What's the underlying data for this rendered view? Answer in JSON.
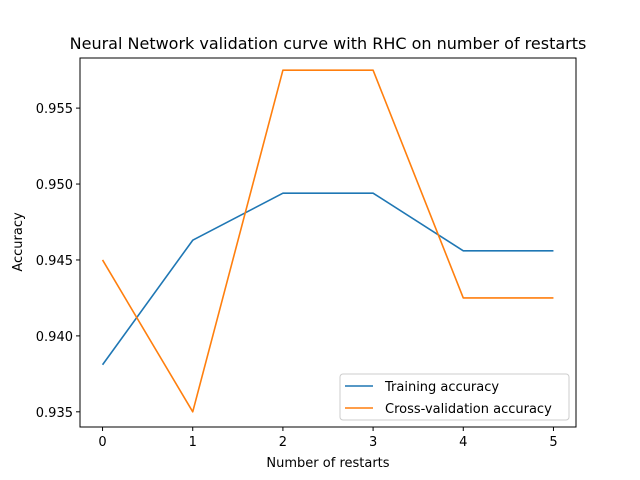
{
  "chart_data": {
    "type": "line",
    "title": "Neural Network validation curve with RHC on number of restarts",
    "xlabel": "Number of restarts",
    "ylabel": "Accuracy",
    "x": [
      0,
      1,
      2,
      3,
      4,
      5
    ],
    "xticks": [
      "0",
      "1",
      "2",
      "3",
      "4",
      "5"
    ],
    "yticks": [
      "0.935",
      "0.940",
      "0.945",
      "0.950",
      "0.955"
    ],
    "xlim": [
      -0.25,
      5.25
    ],
    "ylim": [
      0.934,
      0.9583
    ],
    "grid": false,
    "legend_position": "lower-right",
    "series": [
      {
        "name": "Training accuracy",
        "color": "#1f77b4",
        "values": [
          0.9381,
          0.9463,
          0.9494,
          0.9494,
          0.9456,
          0.9456
        ]
      },
      {
        "name": "Cross-validation accuracy",
        "color": "#ff7f0e",
        "values": [
          0.945,
          0.935,
          0.9575,
          0.9575,
          0.9425,
          0.9425
        ]
      }
    ]
  }
}
